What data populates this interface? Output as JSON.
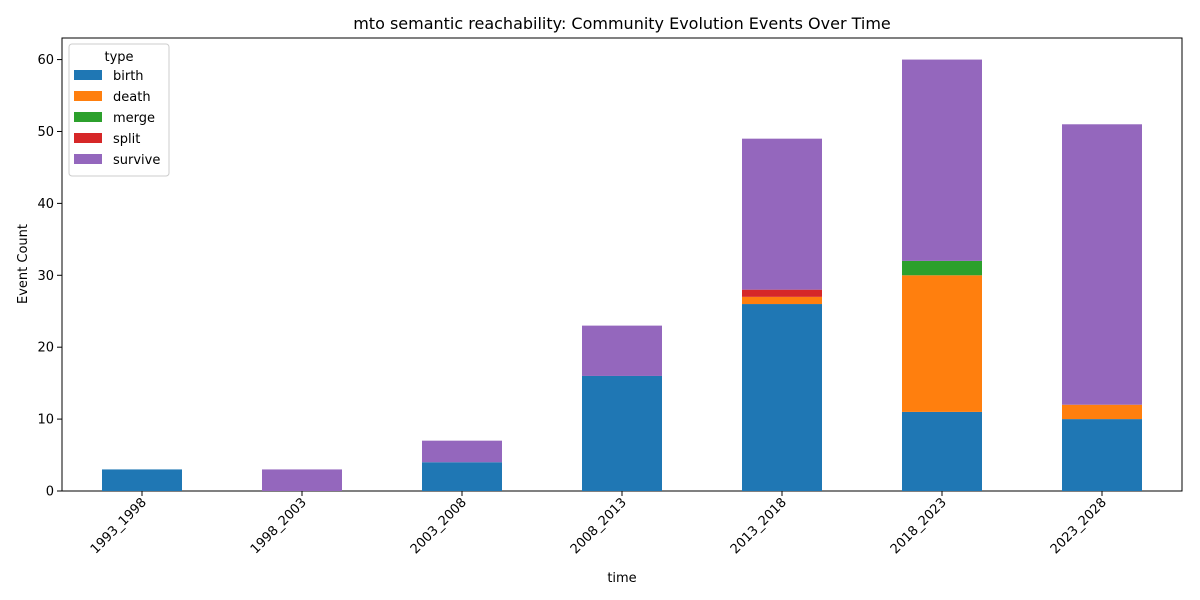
{
  "chart_data": {
    "type": "bar",
    "stacked": true,
    "title": "mto semantic reachability: Community Evolution Events Over Time",
    "xlabel": "time",
    "ylabel": "Event Count",
    "ylim": [
      0,
      63
    ],
    "yticks": [
      0,
      10,
      20,
      30,
      40,
      50,
      60
    ],
    "categories": [
      "1993_1998",
      "1998_2003",
      "2003_2008",
      "2008_2013",
      "2013_2018",
      "2018_2023",
      "2023_2028"
    ],
    "legend": {
      "title": "type",
      "placement": "top-left"
    },
    "series": [
      {
        "name": "birth",
        "color": "#1f77b4",
        "values": [
          3,
          0,
          4,
          16,
          26,
          11,
          10
        ]
      },
      {
        "name": "death",
        "color": "#ff7f0e",
        "values": [
          0,
          0,
          0,
          0,
          1,
          19,
          2
        ]
      },
      {
        "name": "merge",
        "color": "#2ca02c",
        "values": [
          0,
          0,
          0,
          0,
          0,
          2,
          0
        ]
      },
      {
        "name": "split",
        "color": "#d62728",
        "values": [
          0,
          0,
          0,
          0,
          1,
          0,
          0
        ]
      },
      {
        "name": "survive",
        "color": "#9467bd",
        "values": [
          0,
          3,
          3,
          7,
          21,
          28,
          39
        ]
      }
    ]
  }
}
